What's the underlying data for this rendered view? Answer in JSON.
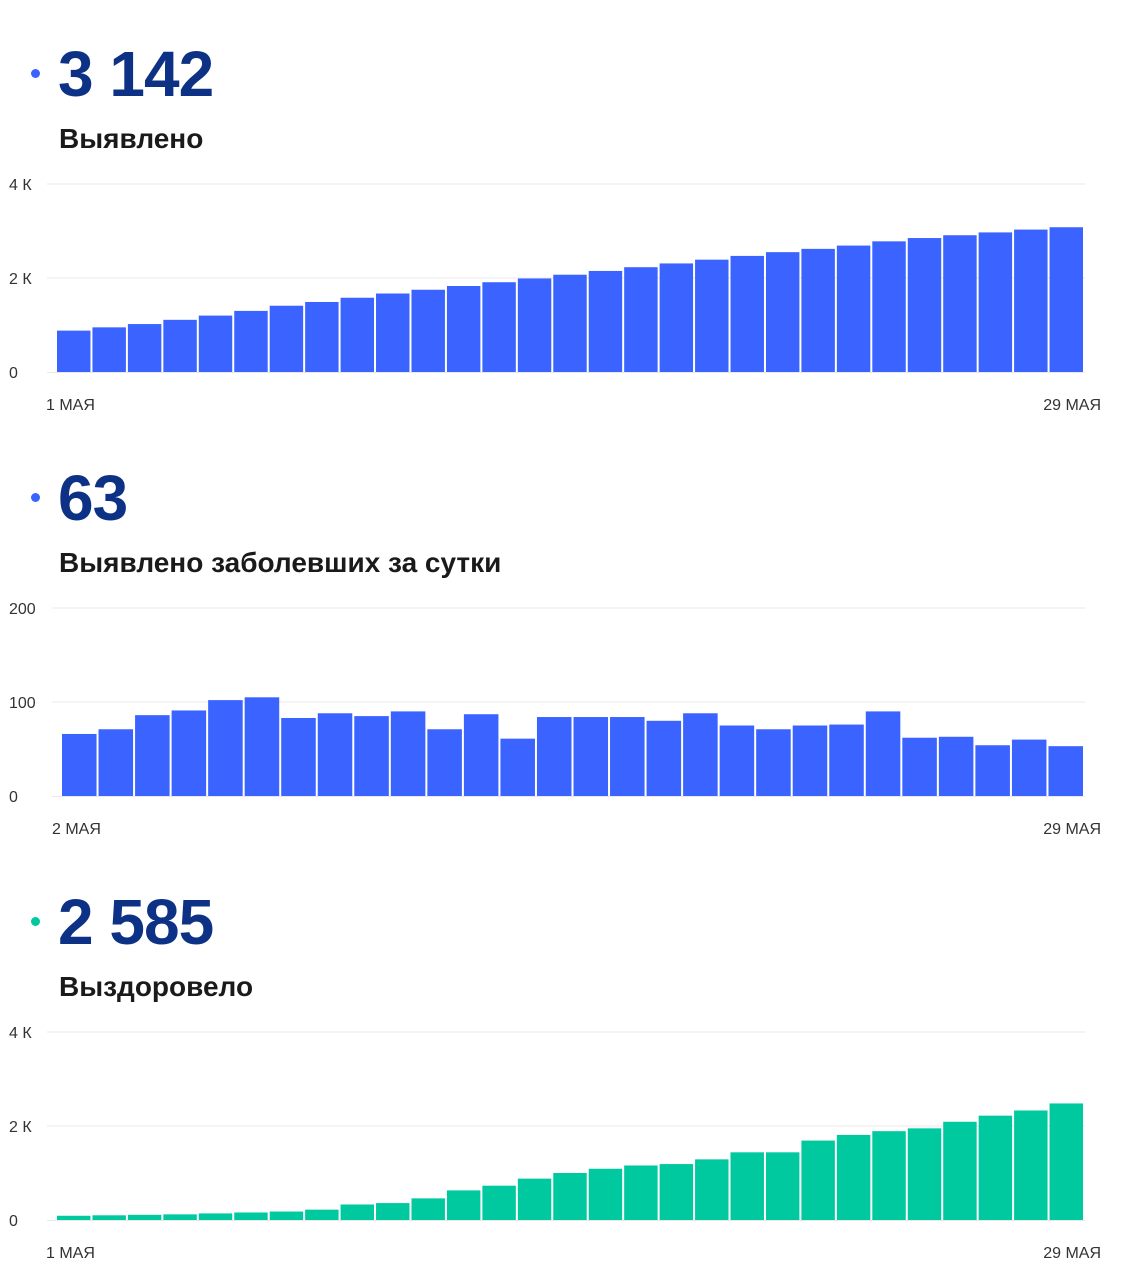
{
  "panels": [
    {
      "value": "3 142",
      "label": "Выявлено",
      "color": "#3a63ff",
      "dot_color": "#3a63ff"
    },
    {
      "value": "63",
      "label": "Выявлено заболевших за сутки",
      "color": "#3a63ff",
      "dot_color": "#3a63ff"
    },
    {
      "value": "2 585",
      "label": "Выздоровело",
      "color": "#00c9a0",
      "dot_color": "#00c9a0"
    }
  ],
  "chart_data": [
    {
      "type": "bar",
      "x_start": "1 МАЯ",
      "x_end": "29 МАЯ",
      "yticks": [
        {
          "value": 0,
          "label": "0"
        },
        {
          "value": 2000,
          "label": "2 К"
        },
        {
          "value": 4000,
          "label": "4 К"
        }
      ],
      "ylim": [
        0,
        4000
      ],
      "values": [
        880,
        950,
        1020,
        1110,
        1200,
        1300,
        1410,
        1490,
        1580,
        1670,
        1750,
        1830,
        1910,
        1990,
        2070,
        2150,
        2230,
        2310,
        2390,
        2470,
        2550,
        2620,
        2690,
        2780,
        2850,
        2910,
        2970,
        3030,
        3080
      ],
      "grid": true
    },
    {
      "type": "bar",
      "x_start": "2 МАЯ",
      "x_end": "29 МАЯ",
      "yticks": [
        {
          "value": 0,
          "label": "0"
        },
        {
          "value": 100,
          "label": "100"
        },
        {
          "value": 200,
          "label": "200"
        }
      ],
      "ylim": [
        0,
        200
      ],
      "values": [
        66,
        71,
        86,
        91,
        102,
        105,
        83,
        88,
        85,
        90,
        71,
        87,
        61,
        84,
        84,
        84,
        80,
        88,
        75,
        71,
        75,
        76,
        90,
        62,
        63,
        54,
        60,
        53
      ],
      "grid": true
    },
    {
      "type": "bar",
      "x_start": "1 МАЯ",
      "x_end": "29 МАЯ",
      "yticks": [
        {
          "value": 0,
          "label": "0"
        },
        {
          "value": 2000,
          "label": "2 К"
        },
        {
          "value": 4000,
          "label": "4 К"
        }
      ],
      "ylim": [
        0,
        4000
      ],
      "values": [
        90,
        100,
        110,
        120,
        140,
        160,
        180,
        220,
        330,
        360,
        460,
        630,
        730,
        880,
        1000,
        1090,
        1160,
        1190,
        1290,
        1440,
        1440,
        1690,
        1810,
        1890,
        1950,
        2090,
        2220,
        2330,
        2480
      ],
      "grid": true
    }
  ]
}
